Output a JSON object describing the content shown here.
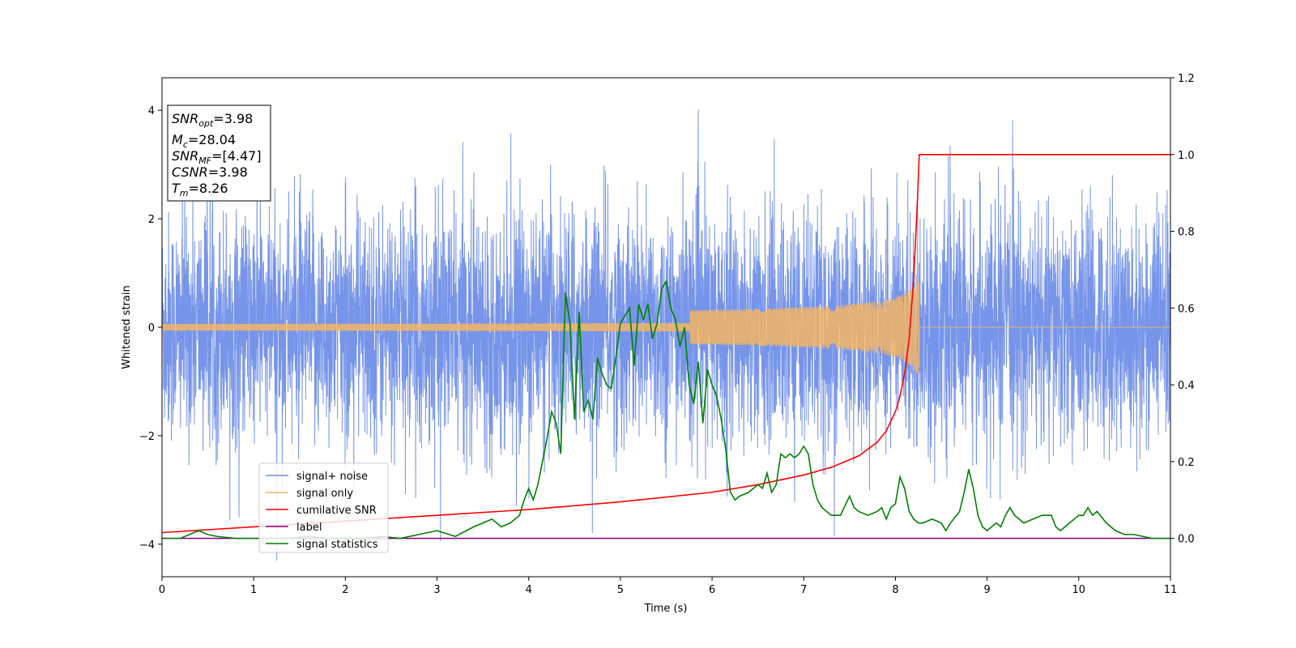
{
  "chart_data": {
    "type": "line",
    "xlabel": "Time (s)",
    "ylabel": "Whitened strain",
    "xlim": [
      0,
      11
    ],
    "ylim": [
      -4.6,
      4.6
    ],
    "y2lim": [
      -0.1,
      1.2
    ],
    "grid": false,
    "legend_position": "lower-left",
    "x_ticks": [
      0,
      1,
      2,
      3,
      4,
      5,
      6,
      7,
      8,
      9,
      10,
      11
    ],
    "y_ticks": [
      -4,
      -2,
      0,
      2,
      4
    ],
    "y2_ticks": [
      "0.0",
      "0.2",
      "0.4",
      "0.6",
      "0.8",
      "1.0",
      "1.2"
    ],
    "annotation": {
      "snr_opt": {
        "sym": "SNR",
        "sub": "opt",
        "value": "=3.98"
      },
      "mc": {
        "sym": "M",
        "sub": "c",
        "value": "=28.04"
      },
      "snr_mf": {
        "sym": "SNR",
        "sub": "MF",
        "value": "=[4.47]"
      },
      "csnr": {
        "sym": "CSNR",
        "sub": "",
        "value": "=3.98"
      },
      "tm": {
        "sym": "T",
        "sub": "m",
        "value": "=8.26"
      }
    },
    "series": [
      {
        "name": "signal+ noise",
        "color": "#6f8ee8",
        "axis": "left",
        "kind": "noise",
        "sigma": 1.0,
        "x_range": [
          0,
          11
        ]
      },
      {
        "name": "signal only",
        "color": "#f5b565",
        "axis": "left",
        "kind": "chirp",
        "merger_time": 8.26,
        "peak_amplitude": 0.85
      },
      {
        "name": "cumilative SNR",
        "color": "#ff0000",
        "axis": "right",
        "x": [
          0,
          1,
          2,
          3,
          4,
          5,
          6,
          6.5,
          7,
          7.3,
          7.6,
          7.8,
          7.9,
          8.0,
          8.05,
          8.1,
          8.15,
          8.2,
          8.24,
          8.26,
          8.27,
          11
        ],
        "y": [
          0.015,
          0.03,
          0.045,
          0.06,
          0.075,
          0.095,
          0.12,
          0.14,
          0.165,
          0.185,
          0.215,
          0.25,
          0.28,
          0.33,
          0.37,
          0.43,
          0.52,
          0.68,
          0.88,
          1.0,
          1.0,
          1.0
        ]
      },
      {
        "name": "label",
        "color": "#800080",
        "axis": "right",
        "x": [
          0,
          11
        ],
        "y": [
          0.0,
          0.0
        ]
      },
      {
        "name": "signal statistics",
        "color": "#008000",
        "axis": "right",
        "x": [
          0,
          0.2,
          0.3,
          0.4,
          0.5,
          0.6,
          0.8,
          1.0,
          1.2,
          1.4,
          1.6,
          1.8,
          2.0,
          2.2,
          2.4,
          2.6,
          2.8,
          3.0,
          3.2,
          3.4,
          3.5,
          3.6,
          3.65,
          3.7,
          3.8,
          3.9,
          3.95,
          4.0,
          4.05,
          4.1,
          4.2,
          4.25,
          4.3,
          4.35,
          4.4,
          4.45,
          4.5,
          4.55,
          4.6,
          4.65,
          4.7,
          4.75,
          4.8,
          4.85,
          4.9,
          4.95,
          5.0,
          5.05,
          5.1,
          5.15,
          5.2,
          5.25,
          5.3,
          5.35,
          5.4,
          5.45,
          5.5,
          5.55,
          5.6,
          5.65,
          5.7,
          5.75,
          5.8,
          5.85,
          5.9,
          5.95,
          6.0,
          6.05,
          6.1,
          6.15,
          6.2,
          6.25,
          6.3,
          6.4,
          6.5,
          6.55,
          6.6,
          6.65,
          6.7,
          6.75,
          6.8,
          6.85,
          6.9,
          6.95,
          7.0,
          7.05,
          7.1,
          7.15,
          7.2,
          7.3,
          7.4,
          7.5,
          7.55,
          7.6,
          7.7,
          7.8,
          7.85,
          7.9,
          7.95,
          8.0,
          8.05,
          8.1,
          8.15,
          8.2,
          8.25,
          8.3,
          8.4,
          8.5,
          8.55,
          8.6,
          8.7,
          8.75,
          8.8,
          8.85,
          8.9,
          8.95,
          9.0,
          9.05,
          9.1,
          9.15,
          9.2,
          9.25,
          9.3,
          9.35,
          9.4,
          9.5,
          9.6,
          9.7,
          9.75,
          9.8,
          9.9,
          10.0,
          10.05,
          10.1,
          10.15,
          10.2,
          10.3,
          10.4,
          10.5,
          10.6,
          10.7,
          10.8,
          11.0
        ],
        "y": [
          0.0,
          0.0,
          0.01,
          0.02,
          0.01,
          0.005,
          0.0,
          0.0,
          0.0,
          0.0,
          0.005,
          0.0,
          0.0,
          0.0,
          0.005,
          0.0,
          0.01,
          0.02,
          0.005,
          0.03,
          0.04,
          0.05,
          0.04,
          0.03,
          0.04,
          0.06,
          0.1,
          0.13,
          0.1,
          0.14,
          0.26,
          0.33,
          0.3,
          0.22,
          0.64,
          0.56,
          0.31,
          0.59,
          0.33,
          0.36,
          0.31,
          0.47,
          0.43,
          0.4,
          0.39,
          0.47,
          0.56,
          0.58,
          0.6,
          0.45,
          0.61,
          0.57,
          0.61,
          0.52,
          0.56,
          0.65,
          0.67,
          0.6,
          0.57,
          0.5,
          0.55,
          0.4,
          0.35,
          0.46,
          0.3,
          0.44,
          0.4,
          0.37,
          0.31,
          0.23,
          0.12,
          0.1,
          0.11,
          0.12,
          0.14,
          0.13,
          0.17,
          0.12,
          0.14,
          0.22,
          0.21,
          0.22,
          0.21,
          0.22,
          0.24,
          0.22,
          0.14,
          0.1,
          0.08,
          0.06,
          0.06,
          0.11,
          0.08,
          0.07,
          0.06,
          0.07,
          0.08,
          0.05,
          0.08,
          0.09,
          0.16,
          0.13,
          0.07,
          0.05,
          0.04,
          0.04,
          0.05,
          0.04,
          0.02,
          0.04,
          0.07,
          0.12,
          0.18,
          0.13,
          0.06,
          0.03,
          0.02,
          0.03,
          0.04,
          0.03,
          0.06,
          0.08,
          0.06,
          0.05,
          0.04,
          0.05,
          0.06,
          0.06,
          0.03,
          0.02,
          0.04,
          0.06,
          0.06,
          0.08,
          0.06,
          0.07,
          0.04,
          0.02,
          0.01,
          0.01,
          0.005,
          0.0,
          0.0
        ]
      }
    ]
  }
}
